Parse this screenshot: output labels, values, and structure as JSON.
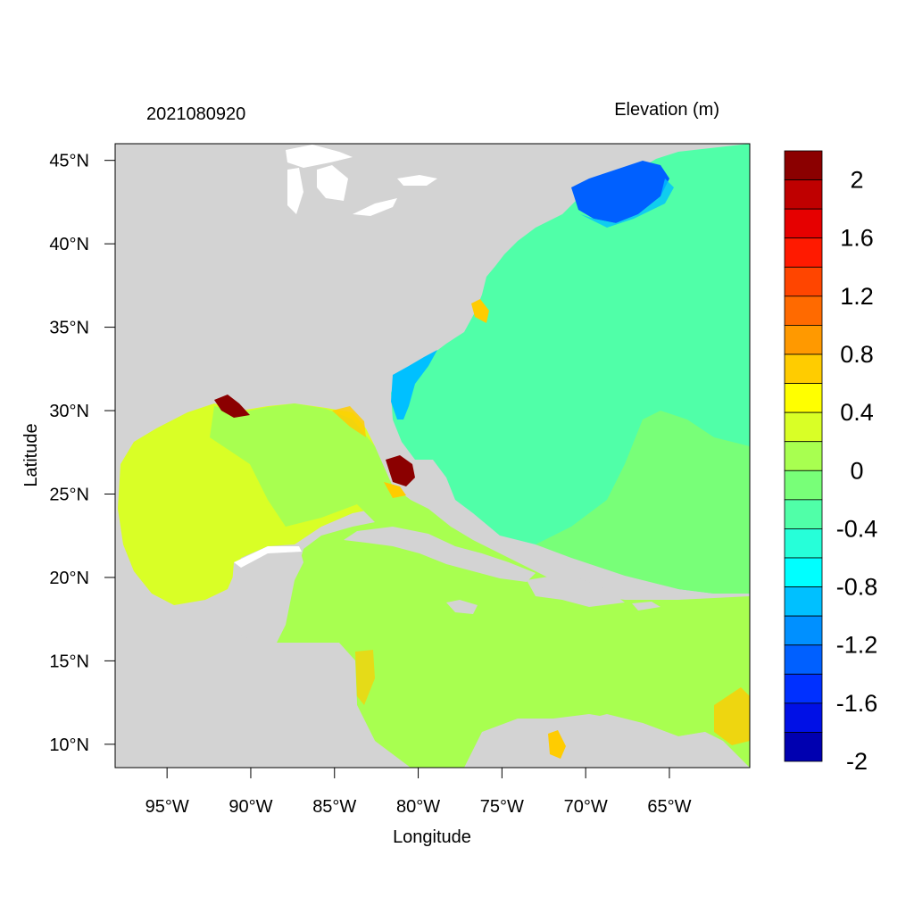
{
  "title_left": "2021080920",
  "title_right": "Elevation (m)",
  "x_axis_label": "Longitude",
  "y_axis_label": "Latitude",
  "lon_ticks": [
    {
      "value": -95,
      "label": "95°W"
    },
    {
      "value": -90,
      "label": "90°W"
    },
    {
      "value": -85,
      "label": "85°W"
    },
    {
      "value": -80,
      "label": "80°W"
    },
    {
      "value": -75,
      "label": "75°W"
    },
    {
      "value": -70,
      "label": "70°W"
    },
    {
      "value": -65,
      "label": "65°W"
    }
  ],
  "lat_ticks": [
    {
      "value": 45,
      "label": "45°N"
    },
    {
      "value": 40,
      "label": "40°N"
    },
    {
      "value": 35,
      "label": "35°N"
    },
    {
      "value": 30,
      "label": "30°N"
    },
    {
      "value": 25,
      "label": "25°N"
    },
    {
      "value": 20,
      "label": "20°N"
    },
    {
      "value": 15,
      "label": "15°N"
    },
    {
      "value": 10,
      "label": "10°N"
    }
  ],
  "lon_range": [
    -98.1,
    -60.2
  ],
  "lat_range": [
    8.6,
    46.0
  ],
  "colorbar": {
    "colors": [
      "#8b0000",
      "#bf0000",
      "#e60000",
      "#ff1a00",
      "#ff4500",
      "#ff6a00",
      "#ff9900",
      "#ffcc00",
      "#ffff00",
      "#d9ff26",
      "#a8ff50",
      "#78ff78",
      "#50ffa8",
      "#26ffd9",
      "#00ffff",
      "#00c0ff",
      "#0090ff",
      "#0060ff",
      "#0030ff",
      "#0010e6",
      "#0000b0"
    ],
    "labels": [
      "2",
      "1.6",
      "1.2",
      "0.8",
      "0.4",
      "0",
      "-0.4",
      "-0.8",
      "-1.2",
      "-1.6",
      "-2"
    ]
  },
  "colors": {
    "land": "#d3d3d3",
    "lake": "#ffffff",
    "gulf_mexico": "#d9ff26",
    "caribbean": "#a8ff50",
    "atlantic": "#50ffa8",
    "atlantic_east": "#78ff78",
    "gulf_of_maine": "#0060ff",
    "shelf": "#00c0ff",
    "positive_high": "#8b0000",
    "positive_mid": "#ffcc00"
  }
}
